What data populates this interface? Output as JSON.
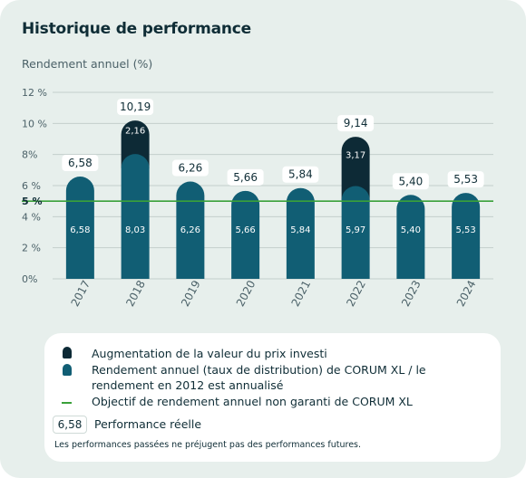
{
  "title": "Historique de performance",
  "chart_data": {
    "type": "bar",
    "stacked": true,
    "ylabel": "Rendement annuel (%)",
    "ylim": [
      0,
      12
    ],
    "yticks": [
      {
        "value": 0,
        "label": "0%"
      },
      {
        "value": 2,
        "label": "2 %"
      },
      {
        "value": 4,
        "label": "4 %"
      },
      {
        "value": 6,
        "label": "6 %"
      },
      {
        "value": 8,
        "label": "8%"
      },
      {
        "value": 10,
        "label": "10 %"
      },
      {
        "value": 12,
        "label": "12 %"
      }
    ],
    "categories": [
      "2017",
      "2018",
      "2019",
      "2020",
      "2021",
      "2022",
      "2023",
      "2024"
    ],
    "series": [
      {
        "name": "Rendement annuel (taux de distribution) de CORUM XL / le rendement en 2012 est annualisé",
        "color": "#115e74",
        "values": [
          6.58,
          8.03,
          6.26,
          5.66,
          5.84,
          5.97,
          5.4,
          5.53
        ],
        "labels": [
          "6,58",
          "8,03",
          "6,26",
          "5,66",
          "5,84",
          "5,97",
          "5,40",
          "5,53"
        ]
      },
      {
        "name": "Augmentation de la valeur du prix investi",
        "color": "#0d2a36",
        "values": [
          0,
          2.16,
          0,
          0,
          0,
          3.17,
          0,
          0
        ],
        "labels": [
          "",
          "2,16",
          "",
          "",
          "",
          "3,17",
          "",
          ""
        ]
      }
    ],
    "totals": [
      "6,58",
      "10,19",
      "6,26",
      "5,66",
      "5,84",
      "9,14",
      "5,40",
      "5,53"
    ],
    "target_line": {
      "value": 5,
      "label": "5 %",
      "color": "#3aa13a"
    },
    "grid": true
  },
  "legend": {
    "items": [
      {
        "label": "Augmentation de la valeur du prix investi",
        "color": "#0d2a36"
      },
      {
        "label": "Rendement annuel (taux de distribution) de CORUM XL / le",
        "label2": "rendement en 2012 est annualisé",
        "color": "#115e74"
      },
      {
        "label": "Objectif de rendement annuel non garanti de CORUM XL",
        "color": "#3aa13a"
      }
    ],
    "badge": "6,58",
    "badge_label": "Performance réelle"
  },
  "footnote": "Les performances passées ne préjugent pas des performances futures."
}
